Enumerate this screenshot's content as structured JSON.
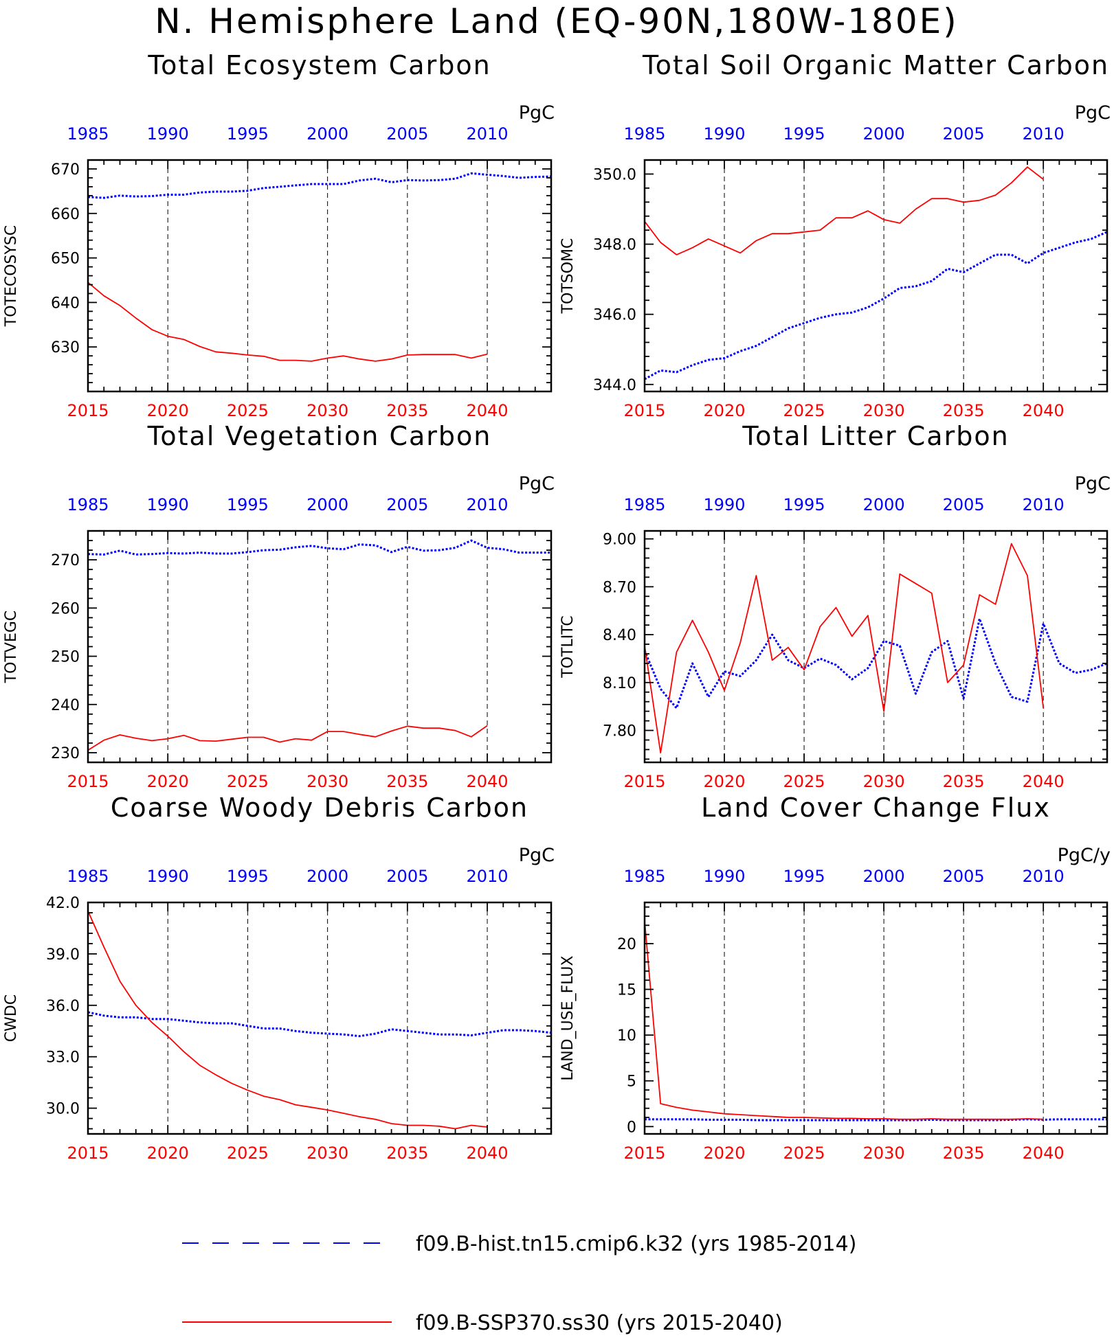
{
  "figure_title": "N. Hemisphere Land (EQ-90N,180W-180E)",
  "legend": {
    "items": [
      {
        "label": "f09.B-hist.tn15.cmip6.k32 (yrs 1985-2014)",
        "color": "#0000ff",
        "style": "dashed"
      },
      {
        "label": "f09.B-SSP370.ss30 (yrs 2015-2040)",
        "color": "#ff0000",
        "style": "solid"
      }
    ]
  },
  "chart_data": [
    {
      "type": "line",
      "title": "Total Ecosystem Carbon",
      "ylabel": "TOTECOSYSC",
      "units": "PgC",
      "ylim": [
        620,
        672
      ],
      "yticks": [
        630,
        640,
        650,
        660,
        670
      ],
      "ytick_labels": [
        "630",
        "640",
        "650",
        "660",
        "670"
      ],
      "x_bottom": {
        "range": [
          2015,
          2044
        ],
        "ticks": [
          2015,
          2020,
          2025,
          2030,
          2035,
          2040
        ],
        "color": "#ff0000"
      },
      "x_top": {
        "range": [
          1985,
          2014
        ],
        "ticks": [
          1985,
          1990,
          1995,
          2000,
          2005,
          2010
        ],
        "color": "#0000ff"
      },
      "series": [
        {
          "axis": "top",
          "color": "#0000ff",
          "style": "dotted",
          "x": [
            1985,
            1986,
            1987,
            1988,
            1989,
            1990,
            1991,
            1992,
            1993,
            1994,
            1995,
            1996,
            1997,
            1998,
            1999,
            2000,
            2001,
            2002,
            2003,
            2004,
            2005,
            2006,
            2007,
            2008,
            2009,
            2010,
            2011,
            2012,
            2013,
            2014
          ],
          "values": [
            663.7,
            663.5,
            664.0,
            663.8,
            663.9,
            664.2,
            664.2,
            664.7,
            664.9,
            664.9,
            665.1,
            665.7,
            666.0,
            666.3,
            666.6,
            666.6,
            666.6,
            667.4,
            667.8,
            667.0,
            667.5,
            667.4,
            667.5,
            667.8,
            669.0,
            668.7,
            668.4,
            668.0,
            668.2,
            668.3
          ]
        },
        {
          "axis": "bottom",
          "color": "#ff0000",
          "style": "solid",
          "x": [
            2015,
            2016,
            2017,
            2018,
            2019,
            2020,
            2021,
            2022,
            2023,
            2024,
            2025,
            2026,
            2027,
            2028,
            2029,
            2030,
            2031,
            2032,
            2033,
            2034,
            2035,
            2036,
            2037,
            2038,
            2039,
            2040
          ],
          "values": [
            644.5,
            641.5,
            639.3,
            636.5,
            633.9,
            632.4,
            631.7,
            630.1,
            628.9,
            628.6,
            628.2,
            627.9,
            627.0,
            627.0,
            626.8,
            627.5,
            628.0,
            627.3,
            626.8,
            627.3,
            628.2,
            628.3,
            628.3,
            628.3,
            627.5,
            628.4
          ]
        }
      ]
    },
    {
      "type": "line",
      "title": "Total Soil Organic Matter Carbon",
      "ylabel": "TOTSOMC",
      "units": "PgC",
      "ylim": [
        343.8,
        350.4
      ],
      "yticks": [
        344,
        346,
        348,
        350
      ],
      "ytick_labels": [
        "344.0",
        "346.0",
        "348.0",
        "350.0"
      ],
      "x_bottom": {
        "range": [
          2015,
          2044
        ],
        "ticks": [
          2015,
          2020,
          2025,
          2030,
          2035,
          2040
        ],
        "color": "#ff0000"
      },
      "x_top": {
        "range": [
          1985,
          2014
        ],
        "ticks": [
          1985,
          1990,
          1995,
          2000,
          2005,
          2010
        ],
        "color": "#0000ff"
      },
      "series": [
        {
          "axis": "top",
          "color": "#0000ff",
          "style": "dotted",
          "x": [
            1985,
            1986,
            1987,
            1988,
            1989,
            1990,
            1991,
            1992,
            1993,
            1994,
            1995,
            1996,
            1997,
            1998,
            1999,
            2000,
            2001,
            2002,
            2003,
            2004,
            2005,
            2006,
            2007,
            2008,
            2009,
            2010,
            2011,
            2012,
            2013,
            2014
          ],
          "values": [
            344.15,
            344.4,
            344.35,
            344.55,
            344.7,
            344.75,
            344.95,
            345.1,
            345.35,
            345.6,
            345.75,
            345.9,
            346.0,
            346.05,
            346.2,
            346.45,
            346.75,
            346.8,
            346.95,
            347.3,
            347.2,
            347.45,
            347.7,
            347.7,
            347.45,
            347.75,
            347.9,
            348.05,
            348.15,
            348.35
          ]
        },
        {
          "axis": "bottom",
          "color": "#ff0000",
          "style": "solid",
          "x": [
            2015,
            2016,
            2017,
            2018,
            2019,
            2020,
            2021,
            2022,
            2023,
            2024,
            2025,
            2026,
            2027,
            2028,
            2029,
            2030,
            2031,
            2032,
            2033,
            2034,
            2035,
            2036,
            2037,
            2038,
            2039,
            2040
          ],
          "values": [
            348.65,
            348.05,
            347.7,
            347.9,
            348.15,
            347.95,
            347.75,
            348.1,
            348.3,
            348.3,
            348.35,
            348.4,
            348.75,
            348.75,
            348.95,
            348.7,
            348.6,
            349.0,
            349.3,
            349.3,
            349.2,
            349.25,
            349.4,
            349.75,
            350.2,
            349.85
          ]
        }
      ]
    },
    {
      "type": "line",
      "title": "Total Vegetation Carbon",
      "ylabel": "TOTVEGC",
      "units": "PgC",
      "ylim": [
        228,
        276
      ],
      "yticks": [
        230,
        240,
        250,
        260,
        270
      ],
      "ytick_labels": [
        "230",
        "240",
        "250",
        "260",
        "270"
      ],
      "x_bottom": {
        "range": [
          2015,
          2044
        ],
        "ticks": [
          2015,
          2020,
          2025,
          2030,
          2035,
          2040
        ],
        "color": "#ff0000"
      },
      "x_top": {
        "range": [
          1985,
          2014
        ],
        "ticks": [
          1985,
          1990,
          1995,
          2000,
          2005,
          2010
        ],
        "color": "#0000ff"
      },
      "series": [
        {
          "axis": "top",
          "color": "#0000ff",
          "style": "dotted",
          "x": [
            1985,
            1986,
            1987,
            1988,
            1989,
            1990,
            1991,
            1992,
            1993,
            1994,
            1995,
            1996,
            1997,
            1998,
            1999,
            2000,
            2001,
            2002,
            2003,
            2004,
            2005,
            2006,
            2007,
            2008,
            2009,
            2010,
            2011,
            2012,
            2013,
            2014
          ],
          "values": [
            271.2,
            271.1,
            271.9,
            271.1,
            271.2,
            271.4,
            271.3,
            271.5,
            271.3,
            271.3,
            271.6,
            272.0,
            272.1,
            272.6,
            272.9,
            272.4,
            272.2,
            273.2,
            273.0,
            271.6,
            272.7,
            271.9,
            272.0,
            272.5,
            274.0,
            272.5,
            272.2,
            271.5,
            271.5,
            271.5
          ]
        },
        {
          "axis": "bottom",
          "color": "#ff0000",
          "style": "solid",
          "x": [
            2015,
            2016,
            2017,
            2018,
            2019,
            2020,
            2021,
            2022,
            2023,
            2024,
            2025,
            2026,
            2027,
            2028,
            2029,
            2030,
            2031,
            2032,
            2033,
            2034,
            2035,
            2036,
            2037,
            2038,
            2039,
            2040
          ],
          "values": [
            230.5,
            232.6,
            233.7,
            233.0,
            232.5,
            232.9,
            233.6,
            232.5,
            232.4,
            232.8,
            233.2,
            233.2,
            232.2,
            232.9,
            232.6,
            234.4,
            234.4,
            233.8,
            233.3,
            234.5,
            235.5,
            235.1,
            235.1,
            234.6,
            233.3,
            235.6
          ]
        }
      ]
    },
    {
      "type": "line",
      "title": "Total Litter Carbon",
      "ylabel": "TOTLITC",
      "units": "PgC",
      "ylim": [
        7.6,
        9.05
      ],
      "yticks": [
        7.8,
        8.1,
        8.4,
        8.7,
        9.0
      ],
      "ytick_labels": [
        "7.80",
        "8.10",
        "8.40",
        "8.70",
        "9.00"
      ],
      "x_bottom": {
        "range": [
          2015,
          2044
        ],
        "ticks": [
          2015,
          2020,
          2025,
          2030,
          2035,
          2040
        ],
        "color": "#ff0000"
      },
      "x_top": {
        "range": [
          1985,
          2014
        ],
        "ticks": [
          1985,
          1990,
          1995,
          2000,
          2005,
          2010
        ],
        "color": "#0000ff"
      },
      "series": [
        {
          "axis": "top",
          "color": "#0000ff",
          "style": "dotted",
          "x": [
            1985,
            1986,
            1987,
            1988,
            1989,
            1990,
            1991,
            1992,
            1993,
            1994,
            1995,
            1996,
            1997,
            1998,
            1999,
            2000,
            2001,
            2002,
            2003,
            2004,
            2005,
            2006,
            2007,
            2008,
            2009,
            2010,
            2011,
            2012,
            2013,
            2014
          ],
          "values": [
            8.3,
            8.06,
            7.94,
            8.22,
            8.01,
            8.17,
            8.14,
            8.24,
            8.4,
            8.24,
            8.19,
            8.25,
            8.21,
            8.12,
            8.19,
            8.36,
            8.33,
            8.03,
            8.29,
            8.36,
            8.0,
            8.5,
            8.22,
            8.01,
            7.98,
            8.47,
            8.22,
            8.16,
            8.18,
            8.22
          ]
        },
        {
          "axis": "bottom",
          "color": "#ff0000",
          "style": "solid",
          "x": [
            2015,
            2016,
            2017,
            2018,
            2019,
            2020,
            2021,
            2022,
            2023,
            2024,
            2025,
            2026,
            2027,
            2028,
            2029,
            2030,
            2031,
            2032,
            2033,
            2034,
            2035,
            2036,
            2037,
            2038,
            2039,
            2040
          ],
          "values": [
            8.33,
            7.66,
            8.29,
            8.49,
            8.29,
            8.05,
            8.35,
            8.77,
            8.24,
            8.32,
            8.18,
            8.45,
            8.57,
            8.39,
            8.52,
            7.92,
            8.78,
            8.72,
            8.66,
            8.1,
            8.21,
            8.65,
            8.59,
            8.97,
            8.77,
            7.94
          ]
        }
      ]
    },
    {
      "type": "line",
      "title": "Coarse Woody Debris Carbon",
      "ylabel": "CWDC",
      "units": "PgC",
      "ylim": [
        28.5,
        42.0
      ],
      "yticks": [
        30,
        33,
        36,
        39,
        42
      ],
      "ytick_labels": [
        "30.0",
        "33.0",
        "36.0",
        "39.0",
        "42.0"
      ],
      "x_bottom": {
        "range": [
          2015,
          2044
        ],
        "ticks": [
          2015,
          2020,
          2025,
          2030,
          2035,
          2040
        ],
        "color": "#ff0000"
      },
      "x_top": {
        "range": [
          1985,
          2014
        ],
        "ticks": [
          1985,
          1990,
          1995,
          2000,
          2005,
          2010
        ],
        "color": "#0000ff"
      },
      "series": [
        {
          "axis": "top",
          "color": "#0000ff",
          "style": "dotted",
          "x": [
            1985,
            1986,
            1987,
            1988,
            1989,
            1990,
            1991,
            1992,
            1993,
            1994,
            1995,
            1996,
            1997,
            1998,
            1999,
            2000,
            2001,
            2002,
            2003,
            2004,
            2005,
            2006,
            2007,
            2008,
            2009,
            2010,
            2011,
            2012,
            2013,
            2014
          ],
          "values": [
            35.6,
            35.4,
            35.3,
            35.3,
            35.2,
            35.2,
            35.1,
            35.0,
            34.95,
            34.95,
            34.8,
            34.65,
            34.65,
            34.5,
            34.4,
            34.35,
            34.3,
            34.2,
            34.35,
            34.6,
            34.5,
            34.4,
            34.3,
            34.3,
            34.25,
            34.4,
            34.55,
            34.55,
            34.5,
            34.4
          ]
        },
        {
          "axis": "bottom",
          "color": "#ff0000",
          "style": "solid",
          "x": [
            2015,
            2016,
            2017,
            2018,
            2019,
            2020,
            2021,
            2022,
            2023,
            2024,
            2025,
            2026,
            2027,
            2028,
            2029,
            2030,
            2031,
            2032,
            2033,
            2034,
            2035,
            2036,
            2037,
            2038,
            2039,
            2040
          ],
          "values": [
            41.5,
            39.4,
            37.4,
            36.0,
            35.0,
            34.2,
            33.3,
            32.5,
            31.95,
            31.45,
            31.05,
            30.7,
            30.5,
            30.2,
            30.05,
            29.9,
            29.7,
            29.5,
            29.35,
            29.1,
            29.0,
            29.0,
            28.95,
            28.8,
            29.0,
            28.9
          ]
        }
      ]
    },
    {
      "type": "line",
      "title": "Land Cover Change Flux",
      "ylabel": "LAND_USE_FLUX",
      "units": "PgC/y",
      "ylim": [
        -0.8,
        24.5
      ],
      "yticks": [
        0,
        5,
        10,
        15,
        20
      ],
      "ytick_labels": [
        "0",
        "5",
        "10",
        "15",
        "20"
      ],
      "x_bottom": {
        "range": [
          2015,
          2044
        ],
        "ticks": [
          2015,
          2020,
          2025,
          2030,
          2035,
          2040
        ],
        "color": "#ff0000"
      },
      "x_top": {
        "range": [
          1985,
          2014
        ],
        "ticks": [
          1985,
          1990,
          1995,
          2000,
          2005,
          2010
        ],
        "color": "#0000ff"
      },
      "series": [
        {
          "axis": "top",
          "color": "#0000ff",
          "style": "dotted",
          "x": [
            1985,
            1986,
            1987,
            1988,
            1989,
            1990,
            1991,
            1992,
            1993,
            1994,
            1995,
            1996,
            1997,
            1998,
            1999,
            2000,
            2001,
            2002,
            2003,
            2004,
            2005,
            2006,
            2007,
            2008,
            2009,
            2010,
            2011,
            2012,
            2013,
            2014
          ],
          "values": [
            0.8,
            0.8,
            0.8,
            0.8,
            0.75,
            0.75,
            0.75,
            0.7,
            0.7,
            0.7,
            0.7,
            0.7,
            0.7,
            0.7,
            0.7,
            0.7,
            0.7,
            0.7,
            0.75,
            0.7,
            0.7,
            0.7,
            0.7,
            0.75,
            0.8,
            0.75,
            0.8,
            0.8,
            0.8,
            0.8
          ]
        },
        {
          "axis": "bottom",
          "color": "#ff0000",
          "style": "solid",
          "x": [
            2015,
            2016,
            2017,
            2018,
            2019,
            2020,
            2021,
            2022,
            2023,
            2024,
            2025,
            2026,
            2027,
            2028,
            2029,
            2030,
            2031,
            2032,
            2033,
            2034,
            2035,
            2036,
            2037,
            2038,
            2039,
            2040
          ],
          "values": [
            22.5,
            2.5,
            2.1,
            1.8,
            1.6,
            1.4,
            1.3,
            1.2,
            1.1,
            1.0,
            1.0,
            0.95,
            0.9,
            0.9,
            0.85,
            0.85,
            0.8,
            0.8,
            0.85,
            0.8,
            0.8,
            0.8,
            0.8,
            0.8,
            0.85,
            0.8
          ]
        }
      ]
    }
  ]
}
